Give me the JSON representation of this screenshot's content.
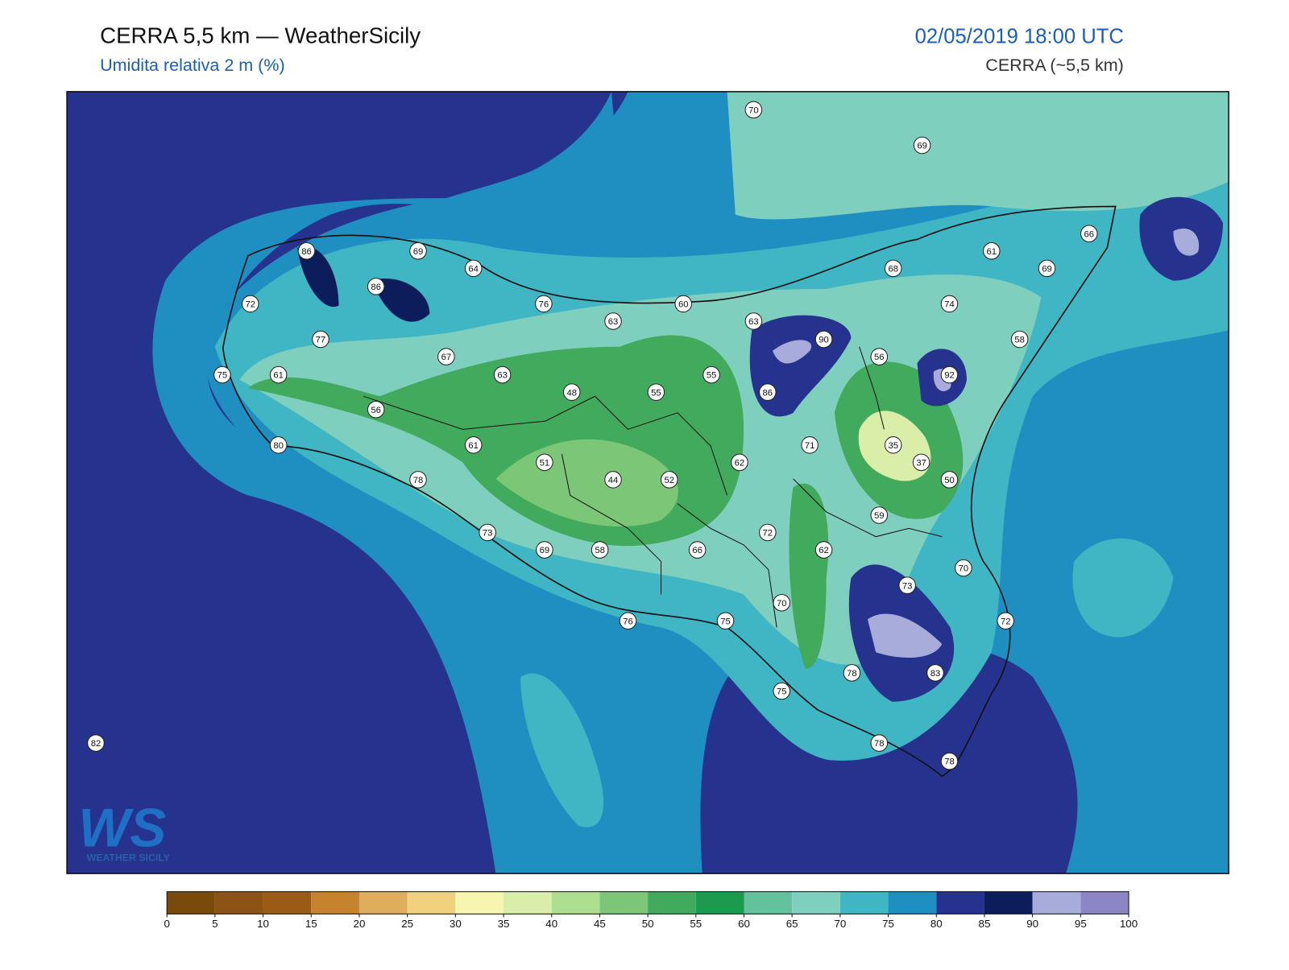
{
  "header": {
    "title": "CERRA 5,5 km — WeatherSicily",
    "subtitle": "Umidita relativa 2 m (%)",
    "datetime": "02/05/2019 18:00 UTC",
    "source": "CERRA (~5,5 km)"
  },
  "logo": {
    "mark": "WS",
    "text": "WEATHER SICILY"
  },
  "stations": [
    70,
    69,
    86,
    69,
    64,
    86,
    72,
    76,
    60,
    63,
    63,
    68,
    61,
    69,
    66,
    74,
    77,
    90,
    58,
    67,
    56,
    75,
    61,
    63,
    55,
    92,
    48,
    55,
    86,
    56,
    80,
    61,
    71,
    35,
    51,
    62,
    37,
    44,
    52,
    78,
    50,
    59,
    73,
    72,
    69,
    58,
    66,
    62,
    70,
    73,
    70,
    76,
    75,
    72,
    78,
    83,
    75,
    82,
    78,
    78
  ],
  "colorbar": {
    "ticks": [
      0,
      5,
      10,
      15,
      20,
      25,
      30,
      35,
      40,
      45,
      50,
      55,
      60,
      65,
      70,
      75,
      80,
      85,
      90,
      95,
      100
    ],
    "colors": [
      "#7a4a0c",
      "#8c5314",
      "#9a5b18",
      "#c4832c",
      "#dfae5c",
      "#f0d27e",
      "#f7f5b0",
      "#d9eea8",
      "#addf8f",
      "#7cc777",
      "#42aa5c",
      "#1b9a50",
      "#63c19d",
      "#7fcfbe",
      "#40b5c4",
      "#1f8fc2",
      "#25338f",
      "#0c1d5c",
      "#a7acdb",
      "#8c87c4"
    ]
  }
}
